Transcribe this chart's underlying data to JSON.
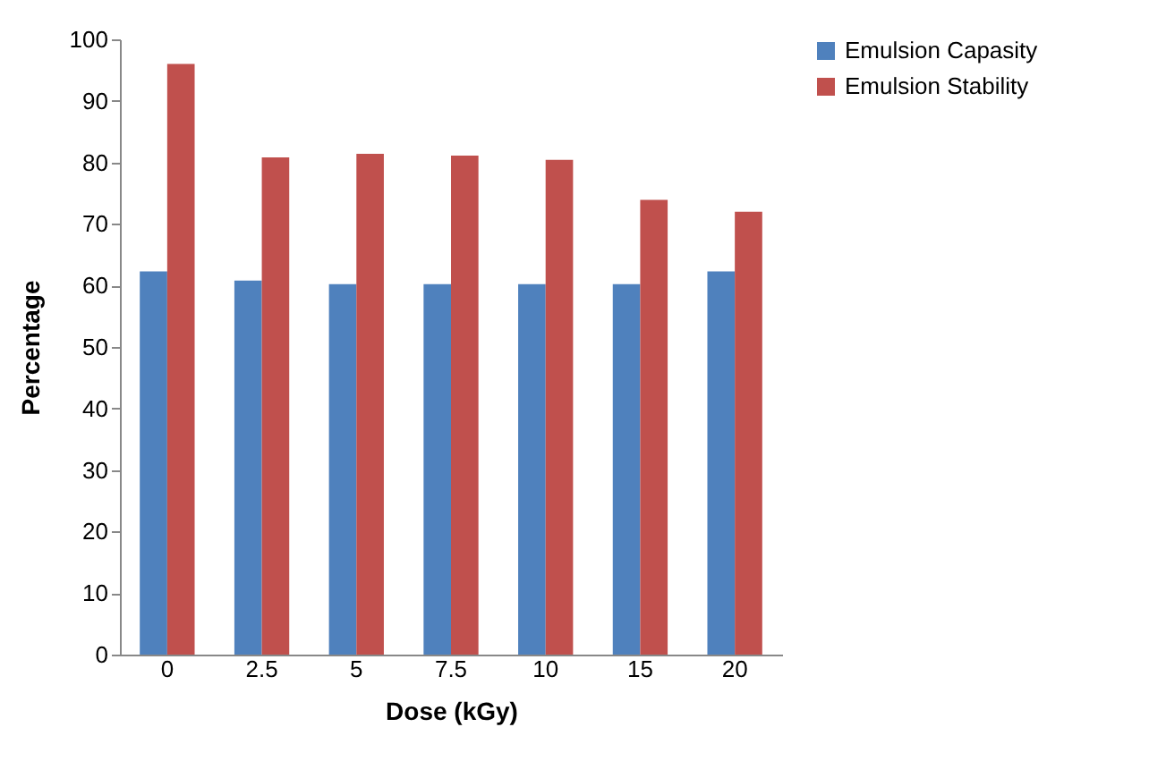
{
  "chart_data": {
    "type": "bar",
    "xlabel": "Dose (kGy)",
    "ylabel": "Percentage",
    "categories": [
      "0",
      "2.5",
      "5",
      "7.5",
      "10",
      "15",
      "20"
    ],
    "series": [
      {
        "name": "Emulsion Capasity",
        "color": "#4f81bd",
        "values": [
          62.3,
          60.8,
          60.2,
          60.2,
          60.2,
          60.2,
          62.3
        ]
      },
      {
        "name": "Emulsion Stability",
        "color": "#c0504d",
        "values": [
          96,
          80.8,
          81.4,
          81.1,
          80.4,
          73.9,
          72
        ]
      }
    ],
    "ylim": [
      0,
      100
    ],
    "yticks": [
      0,
      10,
      20,
      30,
      40,
      50,
      60,
      70,
      80,
      90,
      100
    ],
    "grid": false,
    "legend": "right"
  }
}
